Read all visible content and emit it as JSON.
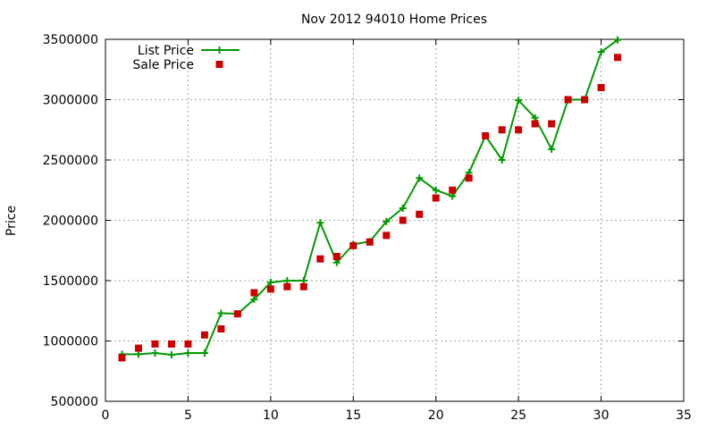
{
  "chart_data": {
    "type": "line",
    "title": "Nov 2012 94010 Home Prices",
    "xlabel": "",
    "ylabel": "Price",
    "xlim": [
      0,
      35
    ],
    "ylim": [
      500000,
      3500000
    ],
    "x_ticks": [
      0,
      5,
      10,
      15,
      20,
      25,
      30,
      35
    ],
    "y_ticks": [
      500000,
      1000000,
      1500000,
      2000000,
      2500000,
      3000000,
      3500000
    ],
    "grid": true,
    "legend_position": "top-left",
    "series": [
      {
        "name": "List Price",
        "style": "line-plus",
        "color": "#009900",
        "x": [
          1,
          2,
          3,
          4,
          5,
          6,
          7,
          8,
          9,
          10,
          11,
          12,
          13,
          14,
          15,
          16,
          17,
          18,
          19,
          20,
          21,
          22,
          23,
          24,
          25,
          26,
          27,
          28,
          29,
          30,
          31
        ],
        "y": [
          890000,
          890000,
          900000,
          885000,
          900000,
          900000,
          1230000,
          1225000,
          1345000,
          1485000,
          1500000,
          1500000,
          1980000,
          1650000,
          1800000,
          1825000,
          1990000,
          2100000,
          2350000,
          2250000,
          2200000,
          2395000,
          2700000,
          2500000,
          2995000,
          2850000,
          2590000,
          3000000,
          3000000,
          3395000,
          3495000
        ]
      },
      {
        "name": "Sale Price",
        "style": "square-markers",
        "color": "#cc0000",
        "x": [
          1,
          2,
          3,
          4,
          5,
          6,
          7,
          8,
          9,
          10,
          11,
          12,
          13,
          14,
          15,
          16,
          17,
          18,
          19,
          20,
          21,
          22,
          23,
          24,
          25,
          26,
          27,
          28,
          29,
          30,
          31
        ],
        "y": [
          860000,
          940000,
          975000,
          975000,
          975000,
          1050000,
          1100000,
          1225000,
          1400000,
          1430000,
          1450000,
          1450000,
          1680000,
          1700000,
          1790000,
          1820000,
          1875000,
          2000000,
          2050000,
          2185000,
          2250000,
          2350000,
          2700000,
          2750000,
          2750000,
          2800000,
          2800000,
          3000000,
          3000000,
          3100000,
          3350000
        ]
      }
    ]
  }
}
